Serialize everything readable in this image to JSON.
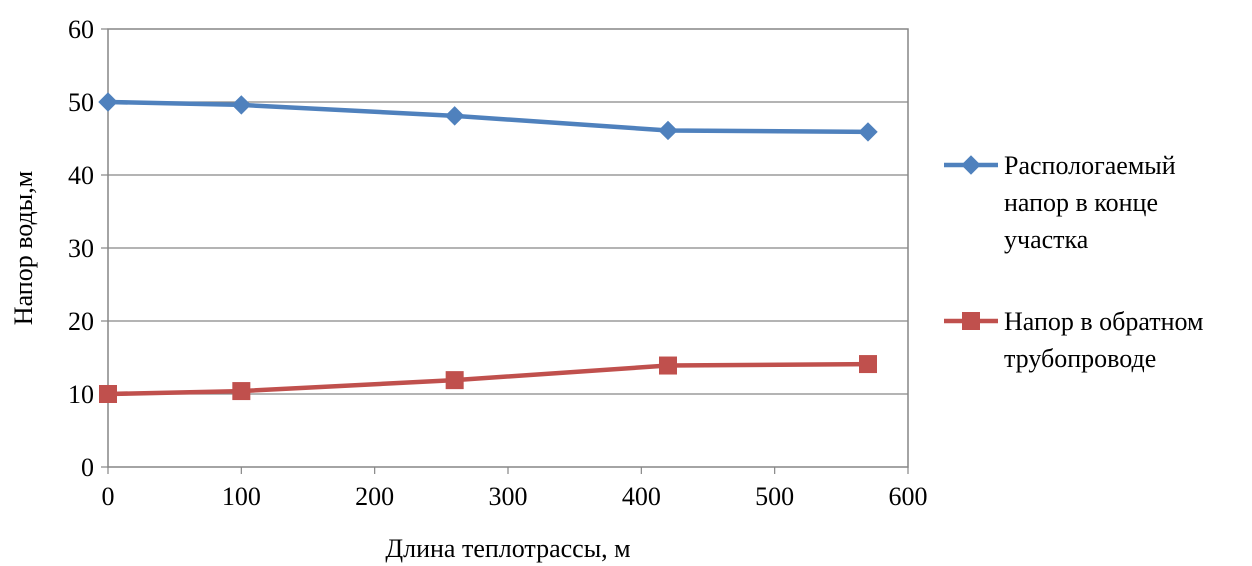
{
  "chart_data": {
    "type": "line",
    "xlabel": "Длина теплотрассы, м",
    "ylabel": "Напор воды,м",
    "xlim": [
      0,
      600
    ],
    "ylim": [
      0,
      60
    ],
    "x_ticks": [
      "0",
      "100",
      "200",
      "300",
      "400",
      "500",
      "600"
    ],
    "y_ticks": [
      "0",
      "10",
      "20",
      "30",
      "40",
      "50",
      "60"
    ],
    "grid": "horizontal",
    "legend_position": "right",
    "series": [
      {
        "name": "Распологаемый напор в конце участка",
        "legend_lines": [
          "Распологаемый",
          "напор в конце",
          "участка"
        ],
        "color": "#4F81BD",
        "marker": "diamond",
        "x": [
          0,
          100,
          260,
          420,
          570
        ],
        "y": [
          50,
          49.6,
          48.1,
          46.1,
          45.9
        ]
      },
      {
        "name": "Напор в обратном трубопроводе",
        "legend_lines": [
          "Напор в обратном",
          "трубопроводе"
        ],
        "color": "#C0504D",
        "marker": "square",
        "x": [
          0,
          100,
          260,
          420,
          570
        ],
        "y": [
          10,
          10.4,
          11.9,
          13.9,
          14.1
        ]
      }
    ]
  }
}
